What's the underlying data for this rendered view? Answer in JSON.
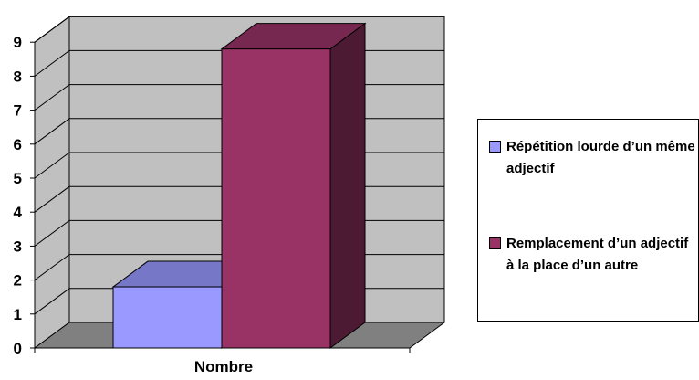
{
  "chart_data": {
    "type": "bar",
    "categories": [
      "Nombre"
    ],
    "series": [
      {
        "name": "Répétition lourde d’un même adjectif",
        "values": [
          1.8
        ],
        "color": "#9999ff"
      },
      {
        "name": "Remplacement d’un adjectif à la place d’un autre",
        "values": [
          8.8
        ],
        "color": "#993366"
      }
    ],
    "yticks": [
      "0",
      "1",
      "2",
      "3",
      "4",
      "5",
      "6",
      "7",
      "8",
      "9"
    ],
    "ylim": [
      0,
      9
    ],
    "grid": true,
    "legend": "right",
    "three_d": true
  }
}
